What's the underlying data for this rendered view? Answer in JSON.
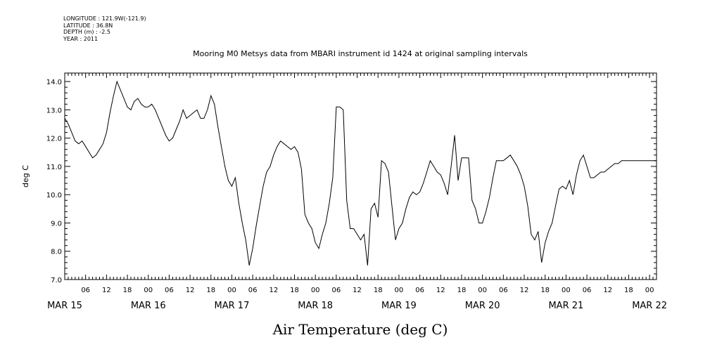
{
  "header": {
    "longitude": "LONGITUDE : 121.9W(-121.9)",
    "latitude": "LATITUDE : 36.8N",
    "depth": "DEPTH (m) : -2.5",
    "year": "YEAR : 2011"
  },
  "chart_data": {
    "type": "line",
    "title": "Mooring M0 Metsys data from MBARI instrument id 1424 at original sampling intervals",
    "xlabel": "Air Temperature (deg C)",
    "ylabel": "deg C",
    "ylim": [
      7.0,
      14.3
    ],
    "xlim_hours": [
      0,
      170
    ],
    "x_unit_note": "hours since MAR 15 00",
    "yticks": [
      "7.0",
      "8.0",
      "9.0",
      "10.0",
      "11.0",
      "12.0",
      "13.0",
      "14.0"
    ],
    "hour_tick_labels": [
      "06",
      "12",
      "18",
      "00",
      "06",
      "12",
      "18",
      "00",
      "06",
      "12",
      "18",
      "00",
      "06",
      "12",
      "18",
      "00",
      "06",
      "12",
      "18",
      "00",
      "06",
      "12",
      "18",
      "00",
      "06",
      "12",
      "18",
      "00",
      "06",
      "12",
      "18",
      "00",
      "06",
      "12",
      "18",
      "00",
      "06",
      "12",
      "18",
      "00",
      "06",
      "12",
      "18",
      "00",
      "06",
      "12",
      "18",
      "00",
      "06",
      "12",
      "18",
      "00",
      "06",
      "12",
      "18",
      "00",
      "06",
      "12",
      "18",
      "00",
      "06",
      "12",
      "18",
      "00",
      "06",
      "12",
      "18",
      "00",
      "06",
      "12",
      "18",
      "00",
      "06",
      "12",
      "18",
      "00",
      "06",
      "12",
      "18",
      "00",
      "06",
      "12",
      "18",
      "00"
    ],
    "date_labels": [
      "MAR 15",
      "MAR 16",
      "MAR 17",
      "MAR 18",
      "MAR 19",
      "MAR 20",
      "MAR 21",
      "MAR 22"
    ],
    "grid": false,
    "series": [
      {
        "x": [
          0,
          1,
          2,
          3,
          4,
          5,
          6,
          7,
          8,
          9,
          10,
          11,
          12,
          13,
          14,
          15,
          16,
          17,
          18,
          19,
          20,
          21,
          22,
          23,
          24,
          25,
          26,
          27,
          28,
          29,
          30,
          31,
          32,
          33,
          34,
          35,
          36,
          37,
          38,
          39,
          40,
          41,
          42,
          43,
          44,
          45,
          46,
          47,
          48,
          49,
          50,
          51,
          52,
          53,
          54,
          55,
          56,
          57,
          58,
          59,
          60,
          61,
          62,
          63,
          64,
          65,
          66,
          67,
          68,
          69,
          70,
          71,
          72,
          73,
          74,
          75,
          76,
          77,
          78,
          79,
          80,
          81,
          82,
          83,
          84,
          85,
          86,
          87,
          88,
          89,
          90,
          91,
          92,
          93,
          94,
          95,
          96,
          97,
          98,
          99,
          100,
          101,
          102,
          103,
          104,
          105,
          106,
          107,
          108,
          109,
          110,
          111,
          112,
          113,
          114,
          115,
          116,
          117,
          118,
          119,
          120,
          121,
          122,
          123,
          124,
          125,
          126,
          127,
          128,
          129,
          130,
          131,
          132,
          133,
          134,
          135,
          136,
          137,
          138,
          139,
          140,
          141,
          142,
          143,
          144,
          145,
          146,
          147,
          148,
          149,
          150,
          151,
          152,
          153,
          154,
          155,
          156,
          157,
          158,
          159,
          160,
          161,
          162,
          163,
          164,
          165,
          166,
          167,
          168,
          169,
          170
        ],
        "values": [
          12.7,
          12.5,
          12.2,
          11.9,
          11.8,
          11.9,
          11.7,
          11.5,
          11.3,
          11.4,
          11.6,
          11.8,
          12.2,
          12.9,
          13.5,
          14.0,
          13.7,
          13.4,
          13.1,
          13.0,
          13.3,
          13.4,
          13.2,
          13.1,
          13.1,
          13.2,
          13.0,
          12.7,
          12.4,
          12.1,
          11.9,
          12.0,
          12.3,
          12.6,
          13.0,
          12.7,
          12.8,
          12.9,
          13.0,
          12.7,
          12.7,
          13.0,
          13.5,
          13.2,
          12.4,
          11.7,
          11.0,
          10.5,
          10.3,
          10.6,
          9.7,
          9.0,
          8.4,
          7.5,
          8.1,
          8.9,
          9.6,
          10.3,
          10.8,
          11.0,
          11.4,
          11.7,
          11.9,
          11.8,
          11.7,
          11.6,
          11.7,
          11.5,
          10.9,
          9.3,
          9.0,
          8.8,
          8.3,
          8.1,
          8.6,
          9.0,
          9.7,
          10.6,
          13.1,
          13.1,
          13.0,
          9.8,
          8.8,
          8.8,
          8.6,
          8.4,
          8.6,
          7.5,
          9.5,
          9.7,
          9.2,
          11.2,
          11.1,
          10.8,
          9.6,
          8.4,
          8.8,
          9.0,
          9.5,
          9.9,
          10.1,
          10.0,
          10.1,
          10.4,
          10.8,
          11.2,
          11.0,
          10.8,
          10.7,
          10.4,
          10.0,
          11.0,
          12.1,
          10.5,
          11.3,
          11.3,
          11.3,
          9.8,
          9.5,
          9.0,
          9.0,
          9.4,
          9.9,
          10.6,
          11.2,
          11.2,
          11.2,
          11.3,
          11.4,
          11.2,
          11.0,
          10.7,
          10.3,
          9.6,
          8.6,
          8.4,
          8.7,
          7.6,
          8.3,
          8.7,
          9.0,
          9.6,
          10.2,
          10.3,
          10.2,
          10.5,
          10.0,
          10.7,
          11.2,
          11.4,
          11.0,
          10.6,
          10.6,
          10.7,
          10.8,
          10.8,
          10.9,
          11.0,
          11.1,
          11.1,
          11.2,
          11.2,
          11.2,
          11.2,
          11.2,
          11.2,
          11.2,
          11.2,
          11.2,
          11.2,
          11.2
        ]
      }
    ]
  }
}
